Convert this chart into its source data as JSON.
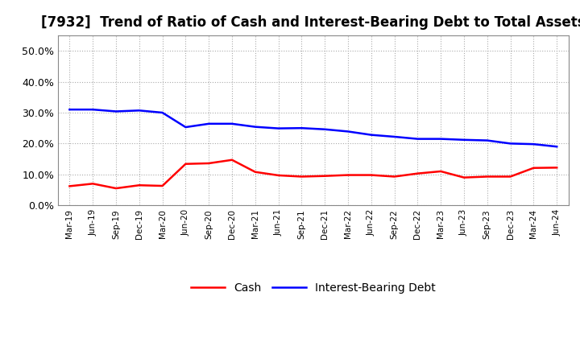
{
  "title": "[7932]  Trend of Ratio of Cash and Interest-Bearing Debt to Total Assets",
  "x_labels": [
    "Mar-19",
    "Jun-19",
    "Sep-19",
    "Dec-19",
    "Mar-20",
    "Jun-20",
    "Sep-20",
    "Dec-20",
    "Mar-21",
    "Jun-21",
    "Sep-21",
    "Dec-21",
    "Mar-22",
    "Jun-22",
    "Sep-22",
    "Dec-22",
    "Mar-23",
    "Jun-23",
    "Sep-23",
    "Dec-23",
    "Mar-24",
    "Jun-24"
  ],
  "cash": [
    0.062,
    0.07,
    0.055,
    0.065,
    0.063,
    0.134,
    0.136,
    0.147,
    0.108,
    0.097,
    0.093,
    0.095,
    0.098,
    0.098,
    0.093,
    0.103,
    0.11,
    0.09,
    0.093,
    0.093,
    0.121,
    0.122
  ],
  "interest_bearing_debt": [
    0.31,
    0.31,
    0.304,
    0.307,
    0.3,
    0.253,
    0.264,
    0.264,
    0.254,
    0.249,
    0.25,
    0.246,
    0.239,
    0.228,
    0.222,
    0.215,
    0.215,
    0.212,
    0.21,
    0.2,
    0.198,
    0.19
  ],
  "cash_color": "#ff0000",
  "debt_color": "#0000ff",
  "ylim": [
    0.0,
    0.55
  ],
  "yticks": [
    0.0,
    0.1,
    0.2,
    0.3,
    0.4,
    0.5
  ],
  "background_color": "#ffffff",
  "grid_color": "#aaaaaa",
  "title_fontsize": 12,
  "legend_cash": "Cash",
  "legend_debt": "Interest-Bearing Debt"
}
